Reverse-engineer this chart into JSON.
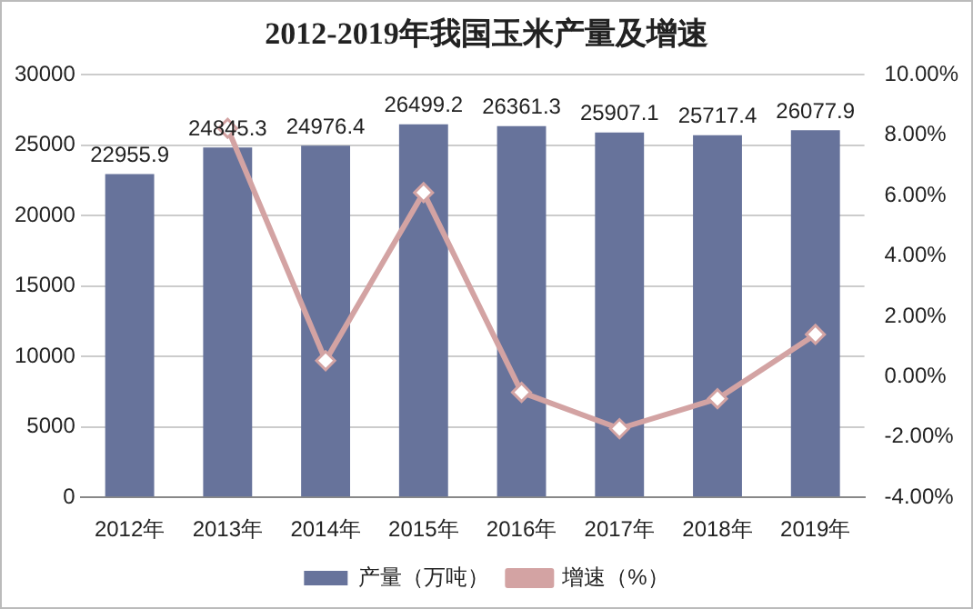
{
  "chart_data": {
    "type": "bar",
    "title": "2012-2019年我国玉米产量及增速",
    "categories": [
      "2012年",
      "2013年",
      "2014年",
      "2015年",
      "2016年",
      "2017年",
      "2018年",
      "2019年"
    ],
    "series": [
      {
        "name": "产量（万吨）",
        "color": "#67739b",
        "values": [
          22955.9,
          24845.3,
          24976.4,
          26499.2,
          26361.3,
          25907.1,
          25717.4,
          26077.9
        ],
        "data_labels": true
      },
      {
        "name": "增速（%）",
        "type": "line",
        "axis": "y2",
        "color": "#d3a3a3",
        "marker": "diamond",
        "values": [
          null,
          8.23,
          0.53,
          6.1,
          -0.52,
          -1.72,
          -0.73,
          1.4
        ]
      }
    ],
    "ylim": [
      0,
      30000
    ],
    "yticks": [
      0,
      5000,
      10000,
      15000,
      20000,
      25000,
      30000
    ],
    "y2lim": [
      -4,
      10
    ],
    "y2ticks": [
      {
        "value": -4,
        "label": "-4.00%"
      },
      {
        "value": -2,
        "label": "-2.00%"
      },
      {
        "value": 0,
        "label": "0.00%"
      },
      {
        "value": 2,
        "label": "2.00%"
      },
      {
        "value": 4,
        "label": "4.00%"
      },
      {
        "value": 6,
        "label": "6.00%"
      },
      {
        "value": 8,
        "label": "8.00%"
      },
      {
        "value": 10,
        "label": "10.00%"
      }
    ],
    "grid": "y",
    "legend": "bottom"
  }
}
